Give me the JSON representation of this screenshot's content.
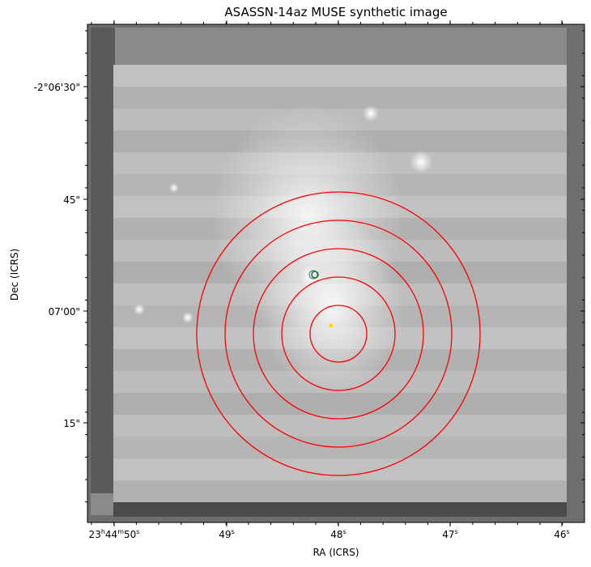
{
  "title": "ASASSN-14az MUSE synthetic image",
  "xlabel": "RA (ICRS)",
  "ylabel": "Dec (ICRS)",
  "yticks": [
    {
      "label": "-2°06'30\"",
      "key": "t1"
    },
    {
      "label": "45\"",
      "key": "t2"
    },
    {
      "label": "07'00\"",
      "key": "t3"
    },
    {
      "label": "15\"",
      "key": "t4"
    }
  ],
  "xticks": [
    {
      "h": "23",
      "m": "44",
      "s": "50"
    },
    {
      "s": "49"
    },
    {
      "s": "48"
    },
    {
      "s": "47"
    },
    {
      "s": "46"
    }
  ],
  "colors": {
    "circles": "#ff0000",
    "marker_yellow": "#ffd700",
    "marker_green": "#1a7a2a",
    "marker_blue": "#4a7fa8",
    "background": "#6e6e6e"
  }
}
